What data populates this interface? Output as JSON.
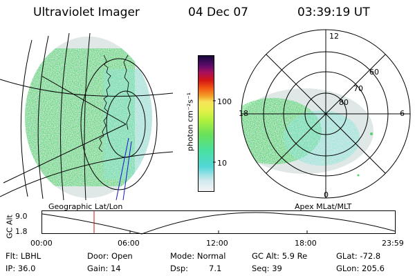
{
  "header": {
    "instrument": "Ultraviolet Imager",
    "date": "04 Dec 07",
    "time": "03:39:19 UT"
  },
  "colorbar": {
    "unit_label": "photon cm⁻²s⁻¹",
    "tick_labels": [
      "100",
      "10"
    ],
    "scale": "log"
  },
  "polar_plot": {
    "mlt_labels": {
      "top": "12",
      "left": "18",
      "right": "6",
      "bottom": "0"
    },
    "lat_labels": [
      "60",
      "70",
      "80"
    ]
  },
  "panel_labels": {
    "left": "Geographic Lat/Lon",
    "right": "Apex MLat/MLT"
  },
  "altitude_plot": {
    "ylabel": "GC Alt",
    "y_ticks": [
      "9.0",
      "1.8"
    ],
    "x_ticks": [
      "00:00",
      "06:00",
      "12:00",
      "18:00",
      "23:59"
    ]
  },
  "status": {
    "filter": "Flt: LBHL",
    "ip": "IP: 36.0",
    "door": "Door: Open",
    "gain": "Gain: 14",
    "mode": "Mode: Normal",
    "dsp_label": "Dsp:",
    "dsp_value": "7.1",
    "gc_alt": "GC Alt: 5.9 Re",
    "seq": "Seq: 39",
    "glat": "GLat: -72.8",
    "glon": "GLon: 205.6"
  },
  "colors": {
    "aurora_green": "#4fd66a",
    "marker_red": "#d11111",
    "track_blue": "#1515c8"
  }
}
